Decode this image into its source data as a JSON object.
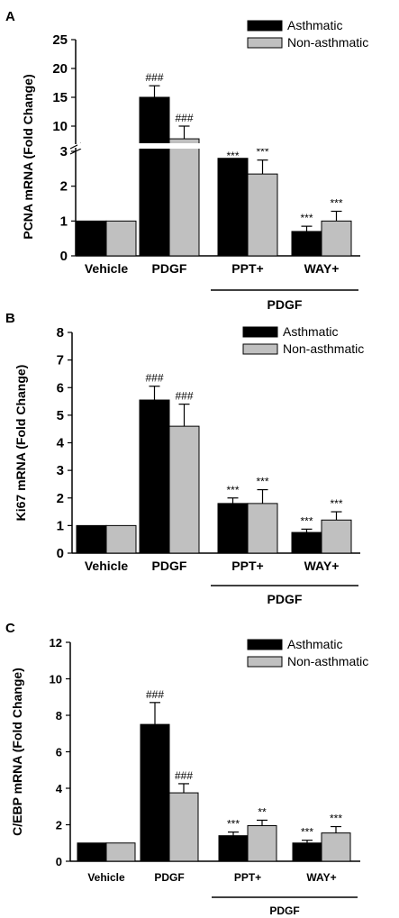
{
  "chart_data": [
    {
      "type": "bar",
      "panel": "A",
      "ylabel": "PCNA mRNA (Fold Change)",
      "axis_break": true,
      "lower_ylim": [
        0,
        3
      ],
      "lower_ticks": [
        "0",
        "1",
        "2",
        "3"
      ],
      "upper_ylim": [
        7.5,
        25
      ],
      "upper_ticks": [
        "10",
        "15",
        "20",
        "25"
      ],
      "categories": [
        "Vehicle",
        "PDGF",
        "PPT+",
        "WAY+"
      ],
      "group_label": "PDGF",
      "series": [
        {
          "name": "Asthmatic",
          "color": "#000000",
          "values": [
            1.0,
            15.0,
            2.8,
            0.7
          ],
          "errors": [
            0,
            2.0,
            0.6,
            0.15
          ],
          "sig": [
            "",
            "###",
            "***",
            "***"
          ]
        },
        {
          "name": "Non-asthmatic",
          "color": "#c0c0c0",
          "values": [
            1.0,
            7.8,
            2.35,
            1.0
          ],
          "errors": [
            0,
            2.2,
            0.4,
            0.28
          ],
          "sig": [
            "",
            "###",
            "***",
            "***"
          ]
        }
      ]
    },
    {
      "type": "bar",
      "panel": "B",
      "ylabel": "Ki67 mRNA (Fold Change)",
      "ylim": [
        0,
        8
      ],
      "ticks": [
        "0",
        "1",
        "2",
        "3",
        "4",
        "5",
        "6",
        "7",
        "8"
      ],
      "categories": [
        "Vehicle",
        "PDGF",
        "PPT+",
        "WAY+"
      ],
      "group_label": "PDGF",
      "series": [
        {
          "name": "Asthmatic",
          "color": "#000000",
          "values": [
            1.0,
            5.55,
            1.8,
            0.75
          ],
          "errors": [
            0,
            0.5,
            0.2,
            0.12
          ],
          "sig": [
            "",
            "###",
            "***",
            "***"
          ]
        },
        {
          "name": "Non-asthmatic",
          "color": "#c0c0c0",
          "values": [
            1.0,
            4.6,
            1.8,
            1.2
          ],
          "errors": [
            0,
            0.8,
            0.5,
            0.3
          ],
          "sig": [
            "",
            "###",
            "***",
            "***"
          ]
        }
      ]
    },
    {
      "type": "bar",
      "panel": "C",
      "ylabel": "C/EBP mRNA (Fold Change)",
      "ylim": [
        0,
        12
      ],
      "ticks": [
        "0",
        "2",
        "4",
        "6",
        "8",
        "10",
        "12"
      ],
      "categories": [
        "Vehicle",
        "PDGF",
        "PPT+",
        "WAY+"
      ],
      "group_label": "PDGF",
      "series": [
        {
          "name": "Asthmatic",
          "color": "#000000",
          "values": [
            1.0,
            7.5,
            1.4,
            1.0
          ],
          "errors": [
            0,
            1.2,
            0.2,
            0.15
          ],
          "sig": [
            "",
            "###",
            "***",
            "***"
          ]
        },
        {
          "name": "Non-asthmatic",
          "color": "#c0c0c0",
          "values": [
            1.0,
            3.75,
            1.95,
            1.55
          ],
          "errors": [
            0,
            0.5,
            0.3,
            0.35
          ],
          "sig": [
            "",
            "###",
            "**",
            "***"
          ]
        }
      ]
    }
  ]
}
